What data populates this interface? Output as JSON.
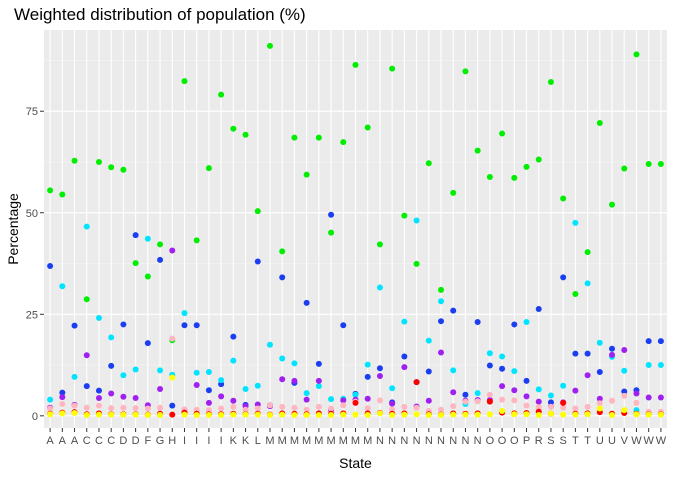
{
  "chart_data": {
    "type": "scatter",
    "title": "Weighted distribution of population (%)",
    "xlabel": "State",
    "ylabel": "Percentage",
    "categories": [
      "A",
      "A",
      "A",
      "C",
      "C",
      "C",
      "D",
      "D",
      "F",
      "G",
      "H",
      "I",
      "I",
      "I",
      "I",
      "K",
      "K",
      "L",
      "M",
      "M",
      "M",
      "M",
      "M",
      "M",
      "M",
      "M",
      "M",
      "N",
      "N",
      "N",
      "N",
      "N",
      "N",
      "N",
      "N",
      "N",
      "O",
      "O",
      "O",
      "P",
      "R",
      "S",
      "S",
      "T",
      "T",
      "U",
      "U",
      "V",
      "W",
      "W",
      "W"
    ],
    "ylim": [
      -3,
      95
    ],
    "yticks": [
      0,
      25,
      50,
      75
    ],
    "grid": true,
    "background": "#ebebeb",
    "series": [
      {
        "color": "#00ee00",
        "values": [
          55.5,
          54.5,
          62.8,
          28.7,
          62.5,
          61.2,
          60.6,
          37.6,
          34.3,
          42.2,
          18.6,
          82.4,
          43.2,
          61.0,
          79.1,
          70.7,
          69.2,
          50.4,
          91.1,
          40.5,
          68.5,
          59.4,
          68.5,
          45.1,
          67.4,
          86.4,
          71.0,
          42.2,
          85.5,
          49.3,
          37.4,
          62.2,
          31.0,
          54.9,
          84.8,
          65.3,
          58.8,
          69.5,
          58.6,
          61.3,
          63.1,
          82.2,
          53.5,
          30.0,
          40.3,
          72.1,
          52.0,
          60.9,
          89.0,
          62.0,
          62.0
        ]
      },
      {
        "color": "#1a3ef0",
        "values": [
          36.9,
          5.7,
          22.2,
          7.3,
          6.2,
          12.3,
          22.5,
          44.5,
          17.9,
          38.4,
          2.5,
          22.3,
          22.3,
          6.3,
          7.8,
          19.5,
          2.7,
          38.0,
          2.6,
          34.1,
          8.1,
          27.8,
          12.8,
          49.5,
          22.3,
          5.4,
          9.6,
          11.7,
          3.3,
          14.6,
          8.3,
          10.9,
          23.3,
          25.9,
          5.2,
          23.1,
          12.4,
          11.6,
          22.5,
          8.6,
          26.3,
          3.3,
          34.1,
          15.3,
          15.3,
          10.8,
          16.5,
          6.0,
          6.3,
          18.4,
          18.4
        ]
      },
      {
        "color": "#00e5ff",
        "values": [
          4.0,
          31.9,
          9.6,
          46.6,
          24.1,
          19.3,
          10.0,
          11.4,
          43.6,
          11.2,
          10.1,
          25.3,
          10.6,
          10.8,
          8.8,
          13.6,
          6.6,
          7.4,
          17.5,
          14.1,
          12.9,
          5.6,
          7.3,
          4.1,
          4.2,
          5.2,
          12.6,
          31.6,
          6.8,
          23.2,
          48.1,
          18.5,
          28.2,
          11.2,
          2.9,
          5.6,
          15.4,
          14.6,
          11.0,
          23.1,
          6.5,
          5.0,
          7.4,
          47.5,
          32.6,
          18.0,
          14.5,
          11.1,
          1.4,
          12.5,
          12.5
        ]
      },
      {
        "color": "#a020f0",
        "values": [
          2.0,
          4.6,
          2.7,
          14.9,
          4.4,
          5.5,
          4.7,
          4.4,
          2.6,
          6.6,
          40.7,
          1.5,
          7.6,
          3.2,
          4.8,
          3.7,
          2.4,
          2.8,
          2.4,
          9.0,
          8.6,
          4.0,
          8.6,
          1.5,
          3.8,
          4.0,
          4.2,
          9.8,
          3.0,
          12.0,
          2.3,
          3.7,
          15.6,
          5.8,
          3.7,
          3.9,
          3.9,
          7.3,
          6.3,
          4.8,
          3.5,
          2.3,
          3.3,
          6.2,
          10.0,
          4.2,
          15.0,
          16.2,
          5.5,
          4.5,
          4.5
        ]
      },
      {
        "color": "#ffb6c1",
        "values": [
          1.8,
          2.9,
          2.5,
          2.0,
          2.5,
          1.9,
          2.0,
          1.9,
          1.8,
          2.0,
          19.0,
          1.6,
          1.5,
          1.4,
          1.8,
          2.2,
          1.5,
          1.8,
          2.6,
          2.2,
          2.0,
          1.5,
          2.2,
          1.8,
          2.6,
          3.5,
          1.9,
          3.8,
          1.6,
          2.2,
          2.0,
          1.2,
          1.5,
          2.4,
          3.5,
          3.6,
          5.2,
          4.0,
          3.8,
          2.5,
          2.1,
          2.2,
          2.0,
          1.8,
          2.2,
          3.1,
          3.7,
          4.9,
          3.2,
          1.0,
          1.0
        ]
      },
      {
        "color": "#ff0000",
        "values": [
          0.5,
          0.8,
          0.9,
          0.4,
          0.6,
          0.4,
          0.4,
          0.4,
          0.3,
          0.5,
          0.3,
          0.8,
          0.5,
          0.4,
          0.4,
          0.5,
          0.4,
          0.5,
          0.3,
          0.6,
          0.5,
          0.4,
          0.6,
          0.5,
          0.6,
          3.2,
          0.6,
          0.7,
          0.5,
          0.6,
          8.3,
          0.4,
          0.3,
          0.6,
          0.5,
          0.6,
          3.5,
          0.8,
          0.6,
          0.7,
          1.0,
          0.5,
          3.2,
          0.5,
          0.6,
          0.9,
          0.5,
          0.7,
          0.5,
          0.4,
          0.4
        ]
      },
      {
        "color": "#ffff00",
        "values": [
          0.4,
          0.6,
          0.7,
          0.2,
          0.3,
          0.3,
          0.3,
          0.3,
          0.2,
          0.2,
          9.4,
          0.3,
          0.2,
          0.2,
          0.2,
          0.3,
          0.3,
          0.3,
          0.2,
          0.3,
          0.2,
          0.2,
          0.2,
          0.2,
          0.3,
          0.3,
          0.2,
          0.6,
          0.2,
          0.3,
          0.4,
          0.2,
          0.2,
          0.3,
          0.3,
          0.3,
          0.4,
          1.2,
          0.4,
          0.4,
          0.2,
          0.5,
          0.3,
          0.3,
          0.4,
          1.8,
          0.2,
          1.4,
          0.4,
          0.3,
          0.3
        ]
      }
    ]
  }
}
